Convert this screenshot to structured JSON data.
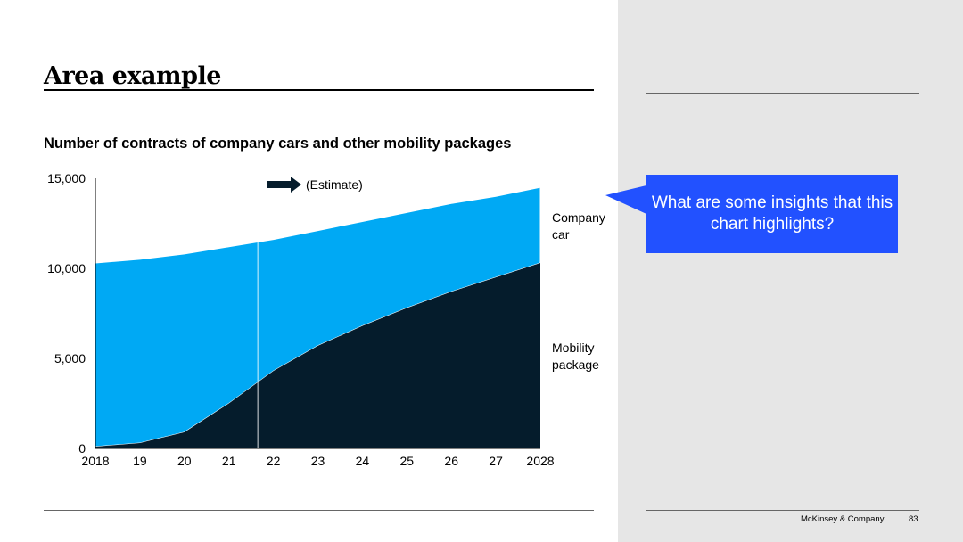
{
  "slide": {
    "title": "Area example",
    "footer_brand": "McKinsey & Company",
    "page_number": "83"
  },
  "callout": {
    "text": "What are some insights that this chart highlights?"
  },
  "colors": {
    "company_car": "#00a9f4",
    "mobility_package": "#051c2c",
    "callout_bg": "#2251ff",
    "panel_bg": "#e6e6e6"
  },
  "chart_data": {
    "type": "area",
    "stacked": true,
    "title": "Number of contracts of company cars and other mobility packages",
    "categories": [
      "2018",
      "19",
      "20",
      "21",
      "22",
      "23",
      "24",
      "25",
      "26",
      "27",
      "2028"
    ],
    "series": [
      {
        "name": "Mobility package",
        "label_lines": [
          "Mobility",
          "package"
        ],
        "values": [
          100,
          300,
          900,
          2500,
          4300,
          5700,
          6800,
          7800,
          8700,
          9500,
          10300
        ]
      },
      {
        "name": "Company car",
        "label_lines": [
          "Company",
          "car"
        ],
        "values": [
          10200,
          10200,
          9900,
          8700,
          7300,
          6400,
          5800,
          5300,
          4900,
          4500,
          4200
        ]
      }
    ],
    "ylim": [
      0,
      15000
    ],
    "yticks": [
      0,
      5000,
      10000,
      15000
    ],
    "ytick_labels": [
      "0",
      "5,000",
      "10,000",
      "15,000"
    ],
    "estimate_label": "(Estimate)",
    "estimate_starts_after_x": 3.65
  }
}
